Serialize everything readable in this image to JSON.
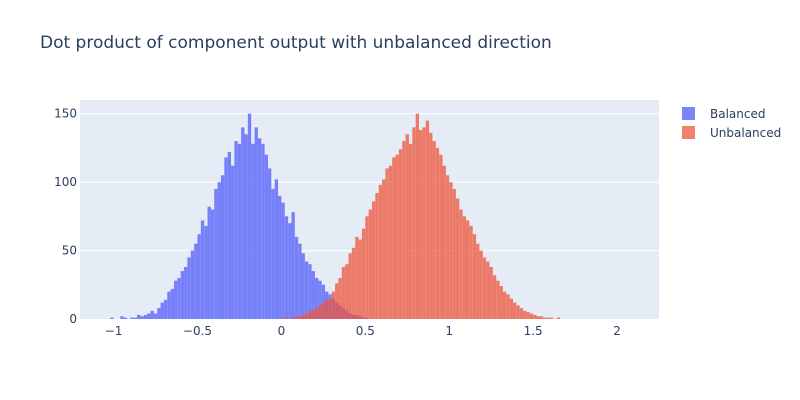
{
  "chart_data": {
    "type": "bar",
    "title": "Dot product of component output with unbalanced direction",
    "xlabel": "",
    "ylabel": "",
    "xlim": [
      -1.2,
      2.25
    ],
    "ylim": [
      0,
      160
    ],
    "x_ticks": [
      -1,
      -0.5,
      0,
      0.5,
      1,
      1.5,
      2
    ],
    "x_tick_labels": [
      "−1",
      "−0.5",
      "0",
      "0.5",
      "1",
      "1.5",
      "2"
    ],
    "y_ticks": [
      0,
      50,
      100,
      150
    ],
    "y_tick_labels": [
      "0",
      "50",
      "100",
      "150"
    ],
    "grid": true,
    "legend_placement": "top-right",
    "bin_width": 0.02,
    "series": [
      {
        "name": "Balanced",
        "color": "#636efa",
        "opacity": 0.85,
        "bin_start": -1.02,
        "counts": [
          1,
          0,
          0,
          2,
          1,
          0,
          1,
          1,
          3,
          2,
          3,
          4,
          6,
          4,
          8,
          12,
          14,
          20,
          22,
          28,
          30,
          35,
          38,
          45,
          50,
          55,
          62,
          72,
          68,
          82,
          80,
          95,
          100,
          105,
          118,
          122,
          112,
          130,
          128,
          140,
          135,
          150,
          128,
          140,
          132,
          128,
          120,
          110,
          95,
          102,
          90,
          85,
          75,
          70,
          78,
          60,
          55,
          48,
          42,
          40,
          35,
          30,
          28,
          25,
          20,
          18,
          15,
          12,
          10,
          8,
          6,
          4,
          3,
          3,
          2,
          1,
          1
        ]
      },
      {
        "name": "Unbalanced",
        "color": "#ef553b",
        "opacity": 0.75,
        "bin_start": -0.02,
        "counts": [
          0,
          0,
          1,
          0,
          1,
          2,
          2,
          3,
          4,
          6,
          6,
          8,
          10,
          12,
          14,
          15,
          20,
          26,
          30,
          38,
          40,
          48,
          52,
          60,
          58,
          66,
          75,
          80,
          86,
          92,
          98,
          102,
          110,
          112,
          118,
          120,
          124,
          130,
          135,
          128,
          140,
          150,
          138,
          140,
          145,
          136,
          130,
          125,
          120,
          112,
          105,
          100,
          95,
          88,
          80,
          75,
          72,
          68,
          62,
          55,
          50,
          45,
          42,
          38,
          32,
          28,
          24,
          20,
          18,
          15,
          12,
          10,
          8,
          6,
          5,
          4,
          3,
          2,
          2,
          1,
          1,
          1,
          0,
          1
        ]
      }
    ]
  }
}
